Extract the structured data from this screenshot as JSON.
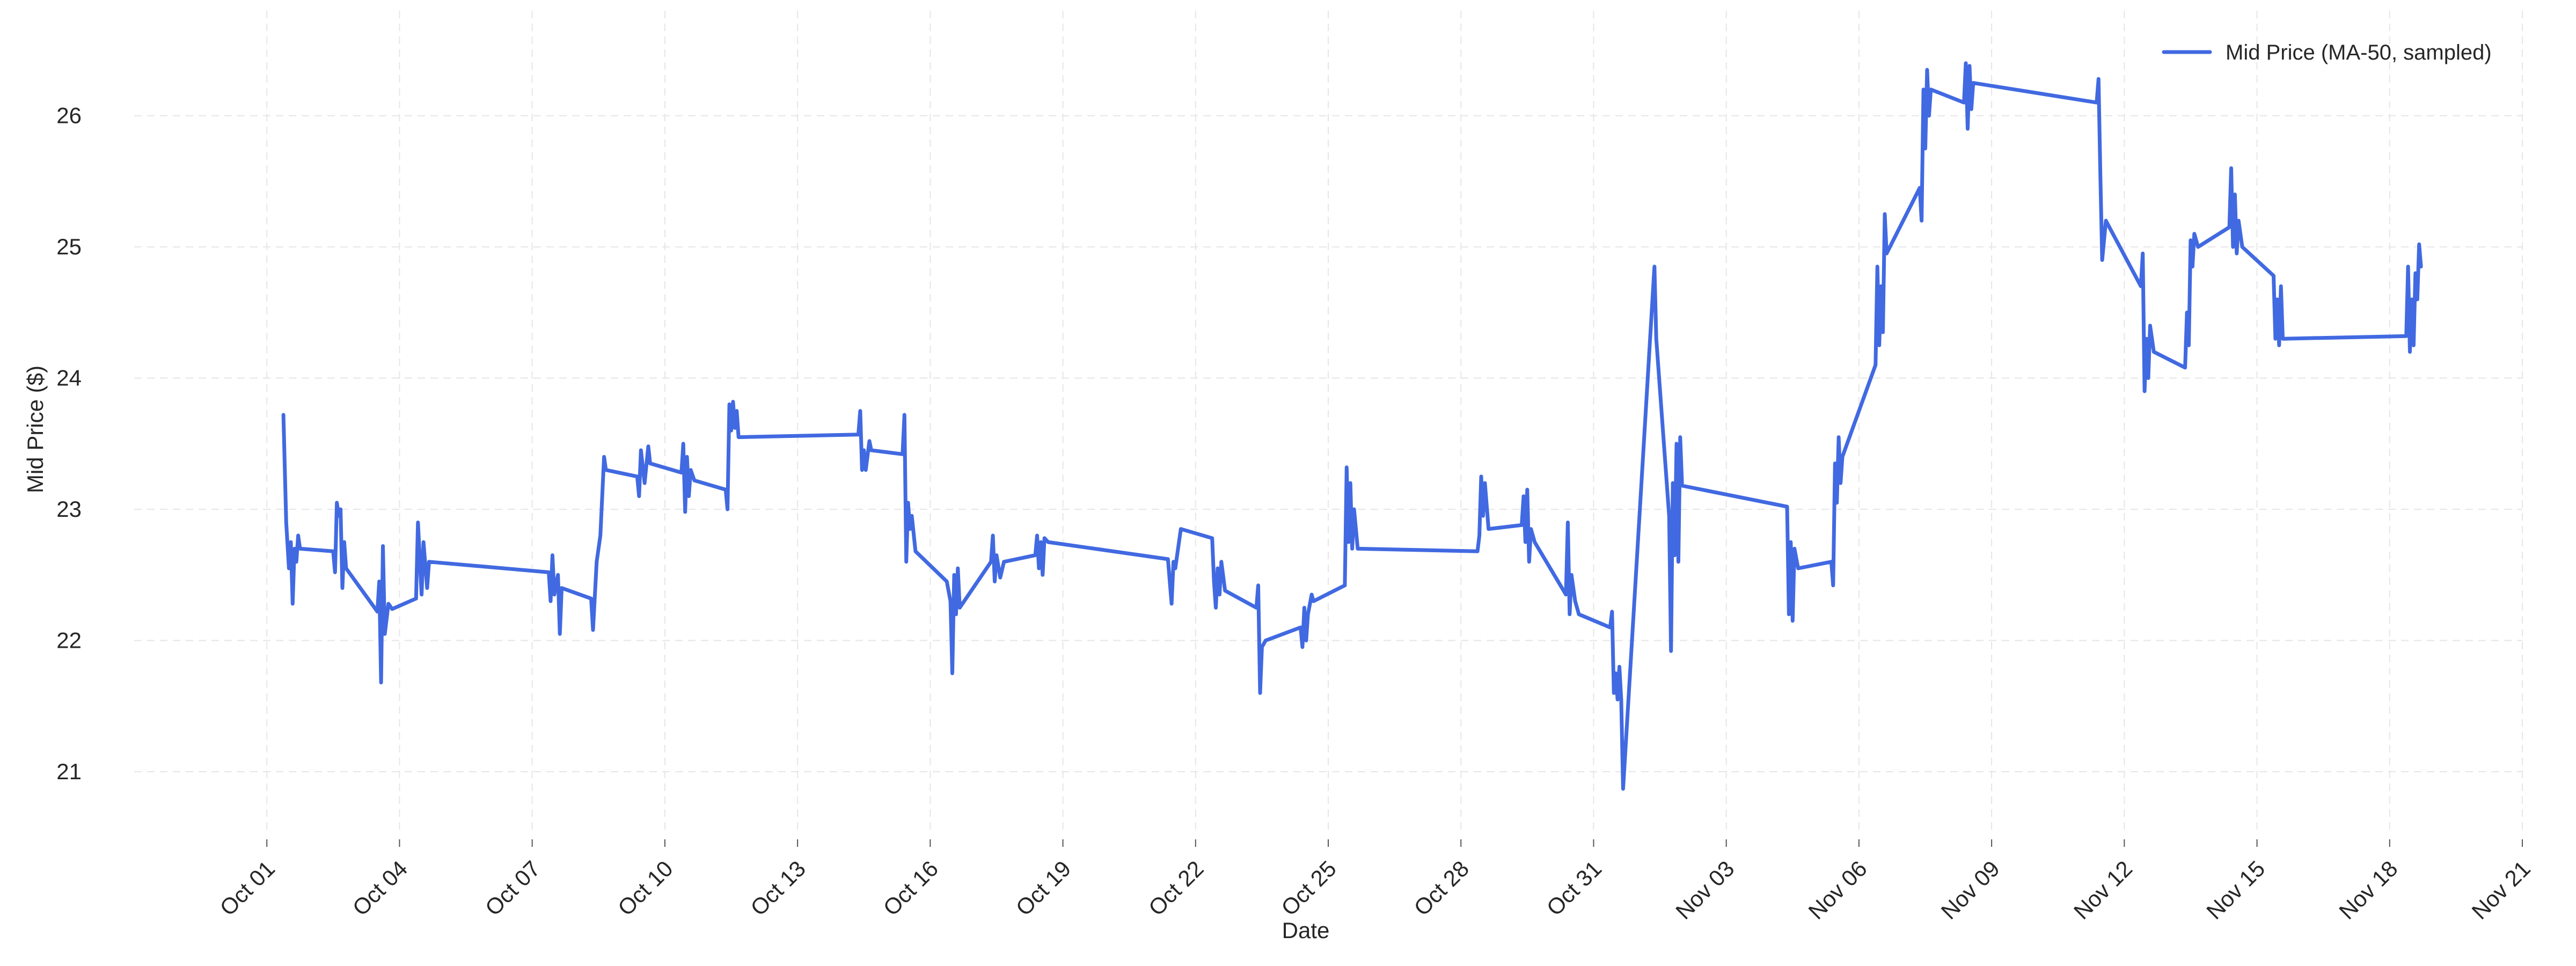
{
  "chart_data": {
    "type": "line",
    "title": "",
    "xlabel": "Date",
    "ylabel": "Mid Price ($)",
    "xlim": [
      "2024-09-28",
      "2024-11-21"
    ],
    "ylim": [
      20.55,
      26.8
    ],
    "grid": true,
    "legend_position": "top-right",
    "x_tick_labels": [
      "Oct 01",
      "Oct 04",
      "Oct 07",
      "Oct 10",
      "Oct 13",
      "Oct 16",
      "Oct 19",
      "Oct 22",
      "Oct 25",
      "Oct 28",
      "Oct 31",
      "Nov 03",
      "Nov 06",
      "Nov 09",
      "Nov 12",
      "Nov 15",
      "Nov 18",
      "Nov 21"
    ],
    "y_ticks": [
      21,
      22,
      23,
      24,
      25,
      26
    ],
    "series": [
      {
        "name": "Mid Price (MA-50, sampled)",
        "color": "#4169e1",
        "points": [
          [
            "2024-10-01T09:00",
            23.72
          ],
          [
            "2024-10-01T10:30",
            22.9
          ],
          [
            "2024-10-01T12:00",
            22.55
          ],
          [
            "2024-10-01T13:00",
            22.75
          ],
          [
            "2024-10-01T14:00",
            22.28
          ],
          [
            "2024-10-01T15:00",
            22.7
          ],
          [
            "2024-10-01T16:00",
            22.6
          ],
          [
            "2024-10-01T17:00",
            22.8
          ],
          [
            "2024-10-01T18:00",
            22.7
          ],
          [
            "2024-10-02T12:00",
            22.68
          ],
          [
            "2024-10-02T13:00",
            22.52
          ],
          [
            "2024-10-02T14:00",
            23.05
          ],
          [
            "2024-10-02T15:00",
            22.95
          ],
          [
            "2024-10-02T16:00",
            23.0
          ],
          [
            "2024-10-02T17:00",
            22.4
          ],
          [
            "2024-10-02T18:00",
            22.75
          ],
          [
            "2024-10-02T19:00",
            22.55
          ],
          [
            "2024-10-03T12:00",
            22.22
          ],
          [
            "2024-10-03T13:00",
            22.45
          ],
          [
            "2024-10-03T14:00",
            21.68
          ],
          [
            "2024-10-03T15:00",
            22.72
          ],
          [
            "2024-10-03T16:00",
            22.05
          ],
          [
            "2024-10-03T18:00",
            22.28
          ],
          [
            "2024-10-03T20:00",
            22.24
          ],
          [
            "2024-10-04T09:00",
            22.32
          ],
          [
            "2024-10-04T10:00",
            22.9
          ],
          [
            "2024-10-04T12:00",
            22.35
          ],
          [
            "2024-10-04T13:00",
            22.75
          ],
          [
            "2024-10-04T15:00",
            22.4
          ],
          [
            "2024-10-04T16:00",
            22.6
          ],
          [
            "2024-10-07T09:00",
            22.52
          ],
          [
            "2024-10-07T10:00",
            22.3
          ],
          [
            "2024-10-07T11:00",
            22.65
          ],
          [
            "2024-10-07T12:00",
            22.35
          ],
          [
            "2024-10-07T14:00",
            22.5
          ],
          [
            "2024-10-07T15:00",
            22.05
          ],
          [
            "2024-10-07T16:00",
            22.4
          ],
          [
            "2024-10-08T08:00",
            22.32
          ],
          [
            "2024-10-08T09:00",
            22.08
          ],
          [
            "2024-10-08T11:00",
            22.6
          ],
          [
            "2024-10-08T13:00",
            22.8
          ],
          [
            "2024-10-08T15:00",
            23.4
          ],
          [
            "2024-10-08T16:00",
            23.3
          ],
          [
            "2024-10-09T09:00",
            23.25
          ],
          [
            "2024-10-09T10:00",
            23.1
          ],
          [
            "2024-10-09T11:00",
            23.45
          ],
          [
            "2024-10-09T13:00",
            23.2
          ],
          [
            "2024-10-09T15:00",
            23.48
          ],
          [
            "2024-10-09T16:00",
            23.35
          ],
          [
            "2024-10-10T09:00",
            23.28
          ],
          [
            "2024-10-10T10:00",
            23.5
          ],
          [
            "2024-10-10T11:00",
            22.98
          ],
          [
            "2024-10-10T12:00",
            23.4
          ],
          [
            "2024-10-10T13:00",
            23.1
          ],
          [
            "2024-10-10T14:00",
            23.3
          ],
          [
            "2024-10-10T16:00",
            23.22
          ],
          [
            "2024-10-11T09:00",
            23.15
          ],
          [
            "2024-10-11T10:00",
            23.0
          ],
          [
            "2024-10-11T11:00",
            23.8
          ],
          [
            "2024-10-11T12:00",
            23.6
          ],
          [
            "2024-10-11T13:00",
            23.82
          ],
          [
            "2024-10-11T14:00",
            23.62
          ],
          [
            "2024-10-11T15:00",
            23.75
          ],
          [
            "2024-10-11T16:00",
            23.55
          ],
          [
            "2024-10-14T09:00",
            23.57
          ],
          [
            "2024-10-14T10:00",
            23.75
          ],
          [
            "2024-10-14T11:00",
            23.3
          ],
          [
            "2024-10-14T12:00",
            23.45
          ],
          [
            "2024-10-14T13:00",
            23.3
          ],
          [
            "2024-10-14T15:00",
            23.52
          ],
          [
            "2024-10-14T16:00",
            23.45
          ],
          [
            "2024-10-15T09:00",
            23.42
          ],
          [
            "2024-10-15T10:00",
            23.72
          ],
          [
            "2024-10-15T11:00",
            22.6
          ],
          [
            "2024-10-15T12:00",
            23.05
          ],
          [
            "2024-10-15T13:00",
            22.85
          ],
          [
            "2024-10-15T14:00",
            22.95
          ],
          [
            "2024-10-15T16:00",
            22.68
          ],
          [
            "2024-10-16T09:00",
            22.45
          ],
          [
            "2024-10-16T11:00",
            22.3
          ],
          [
            "2024-10-16T12:00",
            21.75
          ],
          [
            "2024-10-16T13:00",
            22.5
          ],
          [
            "2024-10-16T14:00",
            22.2
          ],
          [
            "2024-10-16T15:00",
            22.55
          ],
          [
            "2024-10-16T16:00",
            22.25
          ],
          [
            "2024-10-17T09:00",
            22.6
          ],
          [
            "2024-10-17T10:00",
            22.8
          ],
          [
            "2024-10-17T11:00",
            22.45
          ],
          [
            "2024-10-17T12:00",
            22.65
          ],
          [
            "2024-10-17T14:00",
            22.48
          ],
          [
            "2024-10-17T16:00",
            22.6
          ],
          [
            "2024-10-18T09:00",
            22.65
          ],
          [
            "2024-10-18T10:00",
            22.8
          ],
          [
            "2024-10-18T11:00",
            22.55
          ],
          [
            "2024-10-18T12:00",
            22.75
          ],
          [
            "2024-10-18T13:00",
            22.5
          ],
          [
            "2024-10-18T14:00",
            22.78
          ],
          [
            "2024-10-18T16:00",
            22.75
          ],
          [
            "2024-10-21T09:00",
            22.62
          ],
          [
            "2024-10-21T10:00",
            22.45
          ],
          [
            "2024-10-21T11:00",
            22.28
          ],
          [
            "2024-10-21T12:00",
            22.6
          ],
          [
            "2024-10-21T13:00",
            22.55
          ],
          [
            "2024-10-21T14:00",
            22.65
          ],
          [
            "2024-10-21T16:00",
            22.85
          ],
          [
            "2024-10-22T09:00",
            22.78
          ],
          [
            "2024-10-22T10:00",
            22.45
          ],
          [
            "2024-10-22T11:00",
            22.25
          ],
          [
            "2024-10-22T12:00",
            22.55
          ],
          [
            "2024-10-22T13:00",
            22.35
          ],
          [
            "2024-10-22T14:00",
            22.6
          ],
          [
            "2024-10-22T16:00",
            22.38
          ],
          [
            "2024-10-23T09:00",
            22.25
          ],
          [
            "2024-10-23T10:00",
            22.42
          ],
          [
            "2024-10-23T11:00",
            21.6
          ],
          [
            "2024-10-23T12:00",
            21.95
          ],
          [
            "2024-10-23T14:00",
            22.0
          ],
          [
            "2024-10-24T09:00",
            22.1
          ],
          [
            "2024-10-24T10:00",
            21.95
          ],
          [
            "2024-10-24T11:00",
            22.25
          ],
          [
            "2024-10-24T12:00",
            22.0
          ],
          [
            "2024-10-24T13:00",
            22.2
          ],
          [
            "2024-10-24T15:00",
            22.35
          ],
          [
            "2024-10-24T16:00",
            22.3
          ],
          [
            "2024-10-25T09:00",
            22.42
          ],
          [
            "2024-10-25T10:00",
            23.32
          ],
          [
            "2024-10-25T11:00",
            22.75
          ],
          [
            "2024-10-25T12:00",
            23.2
          ],
          [
            "2024-10-25T13:00",
            22.7
          ],
          [
            "2024-10-25T14:00",
            23.0
          ],
          [
            "2024-10-25T16:00",
            22.7
          ],
          [
            "2024-10-28T09:00",
            22.68
          ],
          [
            "2024-10-28T10:00",
            22.8
          ],
          [
            "2024-10-28T11:00",
            23.25
          ],
          [
            "2024-10-28T12:00",
            22.95
          ],
          [
            "2024-10-28T13:00",
            23.2
          ],
          [
            "2024-10-28T15:00",
            22.85
          ],
          [
            "2024-10-29T09:00",
            22.88
          ],
          [
            "2024-10-29T10:00",
            23.1
          ],
          [
            "2024-10-29T11:00",
            22.75
          ],
          [
            "2024-10-29T12:00",
            23.15
          ],
          [
            "2024-10-29T13:00",
            22.6
          ],
          [
            "2024-10-29T14:00",
            22.85
          ],
          [
            "2024-10-29T16:00",
            22.75
          ],
          [
            "2024-10-30T09:00",
            22.35
          ],
          [
            "2024-10-30T10:00",
            22.9
          ],
          [
            "2024-10-30T11:00",
            22.2
          ],
          [
            "2024-10-30T12:00",
            22.5
          ],
          [
            "2024-10-30T14:00",
            22.3
          ],
          [
            "2024-10-30T16:00",
            22.2
          ],
          [
            "2024-10-31T09:00",
            22.1
          ],
          [
            "2024-10-31T10:00",
            22.22
          ],
          [
            "2024-10-31T11:00",
            21.6
          ],
          [
            "2024-10-31T12:00",
            21.75
          ],
          [
            "2024-10-31T13:00",
            21.55
          ],
          [
            "2024-10-31T14:00",
            21.8
          ],
          [
            "2024-10-31T15:00",
            21.55
          ],
          [
            "2024-10-31T16:00",
            20.87
          ],
          [
            "2024-11-01T09:00",
            24.85
          ],
          [
            "2024-11-01T10:00",
            24.3
          ],
          [
            "2024-11-01T17:00",
            22.95
          ],
          [
            "2024-11-01T18:00",
            21.92
          ],
          [
            "2024-11-01T19:00",
            23.2
          ],
          [
            "2024-11-01T20:00",
            22.65
          ],
          [
            "2024-11-01T21:00",
            23.5
          ],
          [
            "2024-11-01T22:00",
            22.6
          ],
          [
            "2024-11-01T23:00",
            23.55
          ],
          [
            "2024-11-02T00:00",
            23.18
          ],
          [
            "2024-11-04T09:00",
            23.02
          ],
          [
            "2024-11-04T10:00",
            22.2
          ],
          [
            "2024-11-04T11:00",
            22.75
          ],
          [
            "2024-11-04T12:00",
            22.15
          ],
          [
            "2024-11-04T13:00",
            22.7
          ],
          [
            "2024-11-04T15:00",
            22.55
          ],
          [
            "2024-11-05T09:00",
            22.6
          ],
          [
            "2024-11-05T10:00",
            22.42
          ],
          [
            "2024-11-05T11:00",
            23.35
          ],
          [
            "2024-11-05T12:00",
            23.05
          ],
          [
            "2024-11-05T13:00",
            23.55
          ],
          [
            "2024-11-05T14:00",
            23.2
          ],
          [
            "2024-11-05T15:00",
            23.4
          ],
          [
            "2024-11-06T09:00",
            24.1
          ],
          [
            "2024-11-06T10:00",
            24.85
          ],
          [
            "2024-11-06T11:00",
            24.25
          ],
          [
            "2024-11-06T12:00",
            24.7
          ],
          [
            "2024-11-06T13:00",
            24.35
          ],
          [
            "2024-11-06T14:00",
            25.25
          ],
          [
            "2024-11-06T15:00",
            24.95
          ],
          [
            "2024-11-07T09:00",
            25.45
          ],
          [
            "2024-11-07T10:00",
            25.2
          ],
          [
            "2024-11-07T11:00",
            26.2
          ],
          [
            "2024-11-07T12:00",
            25.75
          ],
          [
            "2024-11-07T13:00",
            26.35
          ],
          [
            "2024-11-07T14:00",
            26.0
          ],
          [
            "2024-11-07T15:00",
            26.2
          ],
          [
            "2024-11-08T09:00",
            26.1
          ],
          [
            "2024-11-08T10:00",
            26.4
          ],
          [
            "2024-11-08T11:00",
            25.9
          ],
          [
            "2024-11-08T12:00",
            26.38
          ],
          [
            "2024-11-08T13:00",
            26.05
          ],
          [
            "2024-11-08T14:00",
            26.25
          ],
          [
            "2024-11-11T09:00",
            26.1
          ],
          [
            "2024-11-11T10:00",
            26.28
          ],
          [
            "2024-11-11T11:00",
            25.55
          ],
          [
            "2024-11-11T12:00",
            24.9
          ],
          [
            "2024-11-11T14:00",
            25.2
          ],
          [
            "2024-11-12T09:00",
            24.7
          ],
          [
            "2024-11-12T10:00",
            24.95
          ],
          [
            "2024-11-12T11:00",
            23.9
          ],
          [
            "2024-11-12T12:00",
            24.3
          ],
          [
            "2024-11-12T13:00",
            24.0
          ],
          [
            "2024-11-12T14:00",
            24.4
          ],
          [
            "2024-11-12T16:00",
            24.2
          ],
          [
            "2024-11-13T09:00",
            24.08
          ],
          [
            "2024-11-13T10:00",
            24.5
          ],
          [
            "2024-11-13T11:00",
            24.25
          ],
          [
            "2024-11-13T12:00",
            25.05
          ],
          [
            "2024-11-13T13:00",
            24.85
          ],
          [
            "2024-11-13T14:00",
            25.1
          ],
          [
            "2024-11-13T16:00",
            25.0
          ],
          [
            "2024-11-14T09:00",
            25.15
          ],
          [
            "2024-11-14T10:00",
            25.6
          ],
          [
            "2024-11-14T11:00",
            25.0
          ],
          [
            "2024-11-14T12:00",
            25.4
          ],
          [
            "2024-11-14T13:00",
            24.95
          ],
          [
            "2024-11-14T14:00",
            25.2
          ],
          [
            "2024-11-14T16:00",
            25.0
          ],
          [
            "2024-11-15T09:00",
            24.78
          ],
          [
            "2024-11-15T10:00",
            24.3
          ],
          [
            "2024-11-15T11:00",
            24.6
          ],
          [
            "2024-11-15T12:00",
            24.25
          ],
          [
            "2024-11-15T13:00",
            24.7
          ],
          [
            "2024-11-15T14:00",
            24.3
          ],
          [
            "2024-11-18T09:00",
            24.32
          ],
          [
            "2024-11-18T10:00",
            24.85
          ],
          [
            "2024-11-18T11:00",
            24.2
          ],
          [
            "2024-11-18T12:00",
            24.6
          ],
          [
            "2024-11-18T13:00",
            24.25
          ],
          [
            "2024-11-18T14:00",
            24.8
          ],
          [
            "2024-11-18T15:00",
            24.6
          ],
          [
            "2024-11-18T16:00",
            25.02
          ],
          [
            "2024-11-18T17:00",
            24.85
          ]
        ]
      }
    ]
  }
}
